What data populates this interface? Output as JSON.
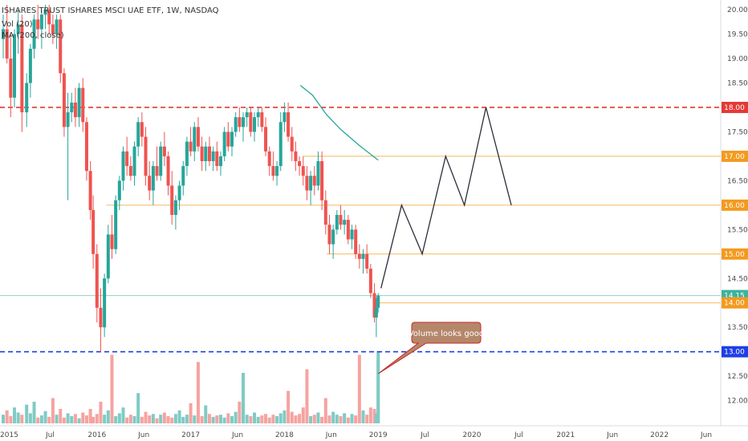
{
  "header": {
    "title": "ISHARES TRUST ISHARES MSCI UAE ETF, 1W, NASDAQ",
    "indicator_volume": "Vol (20)",
    "indicator_ma": "MA (200, close)"
  },
  "colors": {
    "up": "#26a69a",
    "down": "#ef5350",
    "vol_up": "#80cbc4",
    "vol_down": "#f5a3a0",
    "ma": "#26a69a",
    "red_line": "#e53935",
    "blue_line": "#1e3ee6",
    "orange_line": "#f5b85a",
    "teal_line": "#8fd3c8",
    "projection": "#2a2e39",
    "callout_fill": "#b5876a",
    "callout_border": "#c62828"
  },
  "chart_data": {
    "type": "candlestick",
    "title": "ISHARES TRUST ISHARES MSCI UAE ETF, 1W, NASDAQ",
    "ylim": [
      11.6,
      20.1
    ],
    "y_ticks": [
      "12.00",
      "12.50",
      "13.00",
      "13.50",
      "14.00",
      "14.50",
      "15.00",
      "15.50",
      "16.00",
      "16.50",
      "17.00",
      "17.50",
      "18.00",
      "18.50",
      "19.00",
      "19.50",
      "20.00"
    ],
    "x_ticks": [
      "2015",
      "Jul",
      "2016",
      "Jun",
      "2017",
      "Jun",
      "2018",
      "Jun",
      "2019",
      "Jul",
      "2020",
      "Jul",
      "2021",
      "Jun",
      "2022",
      "Jun"
    ],
    "x_tick_years": [
      2015.0,
      2015.5,
      2016.0,
      2016.5,
      2017.0,
      2017.5,
      2018.0,
      2018.5,
      2019.0,
      2019.5,
      2020.0,
      2020.5,
      2021.0,
      2021.5,
      2022.0,
      2022.5
    ],
    "candles": [
      [
        2015.0,
        19.4,
        19.9,
        19.0,
        19.6
      ],
      [
        2015.04,
        19.6,
        20.1,
        18.9,
        19.0
      ],
      [
        2015.08,
        19.0,
        19.5,
        17.8,
        18.2
      ],
      [
        2015.12,
        18.2,
        19.6,
        18.0,
        19.5
      ],
      [
        2015.16,
        19.5,
        20.0,
        19.1,
        19.7
      ],
      [
        2015.2,
        19.7,
        19.9,
        17.5,
        17.9
      ],
      [
        2015.25,
        17.9,
        18.7,
        17.6,
        18.5
      ],
      [
        2015.29,
        18.5,
        19.3,
        18.2,
        19.2
      ],
      [
        2015.33,
        19.2,
        19.9,
        19.0,
        19.8
      ],
      [
        2015.37,
        19.8,
        20.1,
        19.4,
        19.6
      ],
      [
        2015.41,
        19.6,
        20.0,
        19.2,
        19.9
      ],
      [
        2015.45,
        19.9,
        20.1,
        19.6,
        20.0
      ],
      [
        2015.49,
        20.0,
        20.1,
        19.5,
        19.7
      ],
      [
        2015.53,
        19.7,
        19.9,
        19.3,
        19.5
      ],
      [
        2015.57,
        19.5,
        19.9,
        19.2,
        19.8
      ],
      [
        2015.61,
        19.8,
        19.9,
        18.5,
        18.7
      ],
      [
        2015.65,
        18.7,
        18.8,
        17.4,
        17.6
      ],
      [
        2015.69,
        17.6,
        18.3,
        16.1,
        17.9
      ],
      [
        2015.73,
        17.9,
        18.3,
        17.7,
        18.1
      ],
      [
        2015.77,
        18.1,
        18.4,
        17.6,
        17.8
      ],
      [
        2015.81,
        17.8,
        18.5,
        17.6,
        18.4
      ],
      [
        2015.85,
        18.4,
        18.6,
        17.5,
        17.7
      ],
      [
        2015.89,
        17.7,
        17.8,
        16.5,
        16.7
      ],
      [
        2015.93,
        16.7,
        16.9,
        15.7,
        15.9
      ],
      [
        2015.96,
        15.9,
        16.2,
        14.7,
        15.0
      ],
      [
        2016.0,
        15.0,
        15.2,
        13.6,
        13.9
      ],
      [
        2016.04,
        13.9,
        14.3,
        13.0,
        13.5
      ],
      [
        2016.08,
        13.5,
        14.6,
        13.3,
        14.5
      ],
      [
        2016.12,
        14.5,
        15.6,
        14.4,
        15.4
      ],
      [
        2016.16,
        15.4,
        15.8,
        14.9,
        15.1
      ],
      [
        2016.2,
        15.1,
        16.2,
        15.0,
        16.1
      ],
      [
        2016.24,
        16.1,
        16.6,
        15.9,
        16.5
      ],
      [
        2016.28,
        16.5,
        17.2,
        16.3,
        17.1
      ],
      [
        2016.32,
        17.1,
        17.4,
        16.6,
        16.8
      ],
      [
        2016.36,
        16.8,
        17.0,
        16.5,
        16.6
      ],
      [
        2016.4,
        16.6,
        17.3,
        16.4,
        17.2
      ],
      [
        2016.44,
        17.2,
        17.8,
        17.0,
        17.7
      ],
      [
        2016.48,
        17.7,
        17.9,
        17.2,
        17.4
      ],
      [
        2016.52,
        17.4,
        17.6,
        16.4,
        16.6
      ],
      [
        2016.56,
        16.6,
        16.9,
        16.1,
        16.3
      ],
      [
        2016.6,
        16.3,
        16.9,
        16.0,
        16.8
      ],
      [
        2016.64,
        16.8,
        17.2,
        16.5,
        16.6
      ],
      [
        2016.68,
        16.6,
        17.3,
        16.5,
        17.2
      ],
      [
        2016.72,
        17.2,
        17.5,
        16.8,
        17.0
      ],
      [
        2016.76,
        17.0,
        17.1,
        16.2,
        16.4
      ],
      [
        2016.8,
        16.4,
        16.7,
        15.6,
        15.8
      ],
      [
        2016.84,
        15.8,
        16.2,
        15.5,
        16.1
      ],
      [
        2016.88,
        16.1,
        16.5,
        15.9,
        16.4
      ],
      [
        2016.92,
        16.4,
        16.9,
        16.2,
        16.8
      ],
      [
        2016.96,
        16.8,
        17.4,
        16.6,
        17.3
      ],
      [
        2017.0,
        17.3,
        17.6,
        17.0,
        17.1
      ],
      [
        2017.04,
        17.1,
        17.7,
        16.9,
        17.6
      ],
      [
        2017.08,
        17.6,
        17.8,
        17.1,
        17.2
      ],
      [
        2017.12,
        17.2,
        17.4,
        16.7,
        16.9
      ],
      [
        2017.16,
        16.9,
        17.3,
        16.7,
        17.2
      ],
      [
        2017.2,
        17.2,
        17.4,
        16.8,
        16.9
      ],
      [
        2017.24,
        16.9,
        17.2,
        16.7,
        17.1
      ],
      [
        2017.28,
        17.1,
        17.3,
        16.7,
        16.8
      ],
      [
        2017.32,
        16.8,
        17.1,
        16.6,
        17.0
      ],
      [
        2017.36,
        17.0,
        17.6,
        16.9,
        17.5
      ],
      [
        2017.4,
        17.5,
        17.7,
        17.1,
        17.2
      ],
      [
        2017.44,
        17.2,
        17.6,
        17.0,
        17.5
      ],
      [
        2017.48,
        17.5,
        17.9,
        17.4,
        17.8
      ],
      [
        2017.52,
        17.8,
        18.0,
        17.5,
        17.6
      ],
      [
        2017.56,
        17.6,
        17.9,
        17.3,
        17.8
      ],
      [
        2017.6,
        17.8,
        18.0,
        17.6,
        17.9
      ],
      [
        2017.64,
        17.9,
        18.0,
        17.4,
        17.5
      ],
      [
        2017.68,
        17.5,
        17.9,
        17.3,
        17.8
      ],
      [
        2017.72,
        17.8,
        18.0,
        17.6,
        17.9
      ],
      [
        2017.76,
        17.9,
        18.0,
        17.5,
        17.6
      ],
      [
        2017.8,
        17.6,
        17.8,
        17.0,
        17.1
      ],
      [
        2017.84,
        17.1,
        17.2,
        16.6,
        16.8
      ],
      [
        2017.88,
        16.8,
        17.1,
        16.5,
        16.6
      ],
      [
        2017.92,
        16.6,
        16.9,
        16.4,
        16.8
      ],
      [
        2017.96,
        16.8,
        17.9,
        16.7,
        17.7
      ],
      [
        2018.0,
        17.7,
        18.1,
        17.5,
        17.9
      ],
      [
        2018.04,
        17.9,
        18.1,
        17.3,
        17.4
      ],
      [
        2018.08,
        17.4,
        17.6,
        16.9,
        17.1
      ],
      [
        2018.12,
        17.1,
        17.3,
        16.7,
        16.9
      ],
      [
        2018.16,
        16.9,
        17.0,
        16.6,
        16.8
      ],
      [
        2018.2,
        16.8,
        17.0,
        16.4,
        16.6
      ],
      [
        2018.24,
        16.6,
        16.8,
        16.1,
        16.3
      ],
      [
        2018.28,
        16.3,
        16.7,
        16.0,
        16.6
      ],
      [
        2018.32,
        16.6,
        16.8,
        16.2,
        16.4
      ],
      [
        2018.36,
        16.4,
        17.1,
        16.3,
        16.9
      ],
      [
        2018.4,
        16.9,
        17.1,
        15.9,
        16.1
      ],
      [
        2018.44,
        16.1,
        16.3,
        15.4,
        15.6
      ],
      [
        2018.48,
        15.6,
        15.8,
        15.0,
        15.2
      ],
      [
        2018.52,
        15.2,
        15.6,
        14.9,
        15.5
      ],
      [
        2018.56,
        15.5,
        15.9,
        15.4,
        15.8
      ],
      [
        2018.6,
        15.8,
        16.0,
        15.5,
        15.6
      ],
      [
        2018.64,
        15.6,
        15.9,
        15.4,
        15.7
      ],
      [
        2018.68,
        15.7,
        15.8,
        15.2,
        15.3
      ],
      [
        2018.72,
        15.3,
        15.6,
        15.1,
        15.5
      ],
      [
        2018.76,
        15.5,
        15.6,
        14.9,
        15.0
      ],
      [
        2018.8,
        15.0,
        15.2,
        14.7,
        14.9
      ],
      [
        2018.84,
        14.9,
        15.1,
        14.6,
        15.0
      ],
      [
        2018.88,
        15.0,
        15.2,
        14.6,
        14.7
      ],
      [
        2018.92,
        14.7,
        14.8,
        14.1,
        14.2
      ],
      [
        2018.96,
        14.2,
        14.4,
        13.6,
        13.7
      ],
      [
        2018.98,
        13.7,
        14.1,
        13.3,
        13.9
      ],
      [
        2019.0,
        13.9,
        14.2,
        13.8,
        14.15
      ]
    ],
    "volume": {
      "ylim": [
        0,
        1
      ],
      "values": [
        0.12,
        0.18,
        0.1,
        0.22,
        0.15,
        0.12,
        0.26,
        0.14,
        0.3,
        0.08,
        0.11,
        0.17,
        0.09,
        0.35,
        0.12,
        0.2,
        0.08,
        0.14,
        0.1,
        0.13,
        0.07,
        0.15,
        0.11,
        0.2,
        0.09,
        0.13,
        0.3,
        0.12,
        0.18,
        0.95,
        0.1,
        0.14,
        0.22,
        0.08,
        0.12,
        0.1,
        0.42,
        0.09,
        0.16,
        0.11,
        0.13,
        0.07,
        0.12,
        0.15,
        0.1,
        0.08,
        0.13,
        0.18,
        0.09,
        0.12,
        0.28,
        0.11,
        0.85,
        0.1,
        0.25,
        0.13,
        0.09,
        0.11,
        0.12,
        0.08,
        0.14,
        0.1,
        0.16,
        0.3,
        0.7,
        0.12,
        0.1,
        0.15,
        0.09,
        0.11,
        0.13,
        0.08,
        0.12,
        0.1,
        0.14,
        0.18,
        0.45,
        0.16,
        0.11,
        0.13,
        0.22,
        0.75,
        0.1,
        0.12,
        0.15,
        0.09,
        0.35,
        0.11,
        0.16,
        0.12,
        0.1,
        0.14,
        0.08,
        0.13,
        0.11,
        0.95,
        0.18,
        0.12,
        0.22,
        0.2,
        0.14,
        0.88,
        1.0
      ]
    },
    "moving_average": {
      "name": "MA (200, close)",
      "points": [
        [
          2018.17,
          18.45
        ],
        [
          2018.3,
          18.25
        ],
        [
          2018.45,
          17.85
        ],
        [
          2018.6,
          17.55
        ],
        [
          2018.8,
          17.22
        ],
        [
          2019.0,
          16.92
        ]
      ]
    },
    "horizontal_lines": [
      {
        "name": "resistance-18",
        "value": 18.0,
        "style": "dashed",
        "color": "#e53935",
        "label": "18.00"
      },
      {
        "name": "level-17",
        "value": 17.0,
        "style": "solid",
        "color": "#f5b85a",
        "label": "17.00",
        "from_year": 2018.2
      },
      {
        "name": "level-16",
        "value": 16.0,
        "style": "solid",
        "color": "#f5b85a",
        "label": "16.00",
        "from_year": 2016.1
      },
      {
        "name": "level-15",
        "value": 15.0,
        "style": "solid",
        "color": "#f5b85a",
        "label": "15.00",
        "from_year": 2018.45
      },
      {
        "name": "last-price",
        "value": 14.15,
        "style": "solid",
        "color": "#8fd3c8",
        "label": "14.15"
      },
      {
        "name": "level-14",
        "value": 14.0,
        "style": "solid",
        "color": "#f5b85a",
        "label": "14.00",
        "from_year": 2019.0
      },
      {
        "name": "support-13",
        "value": 13.0,
        "style": "dashed",
        "color": "#1e3ee6",
        "label": "13.00"
      }
    ],
    "projection_path": [
      [
        2019.03,
        14.3
      ],
      [
        2019.25,
        16.0
      ],
      [
        2019.47,
        15.0
      ],
      [
        2019.72,
        17.0
      ],
      [
        2019.92,
        16.0
      ],
      [
        2020.15,
        18.0
      ],
      [
        2020.42,
        16.0
      ]
    ],
    "annotation": {
      "text": "Volume looks good",
      "target_year": 2019.0,
      "target_price": 12.55
    }
  }
}
